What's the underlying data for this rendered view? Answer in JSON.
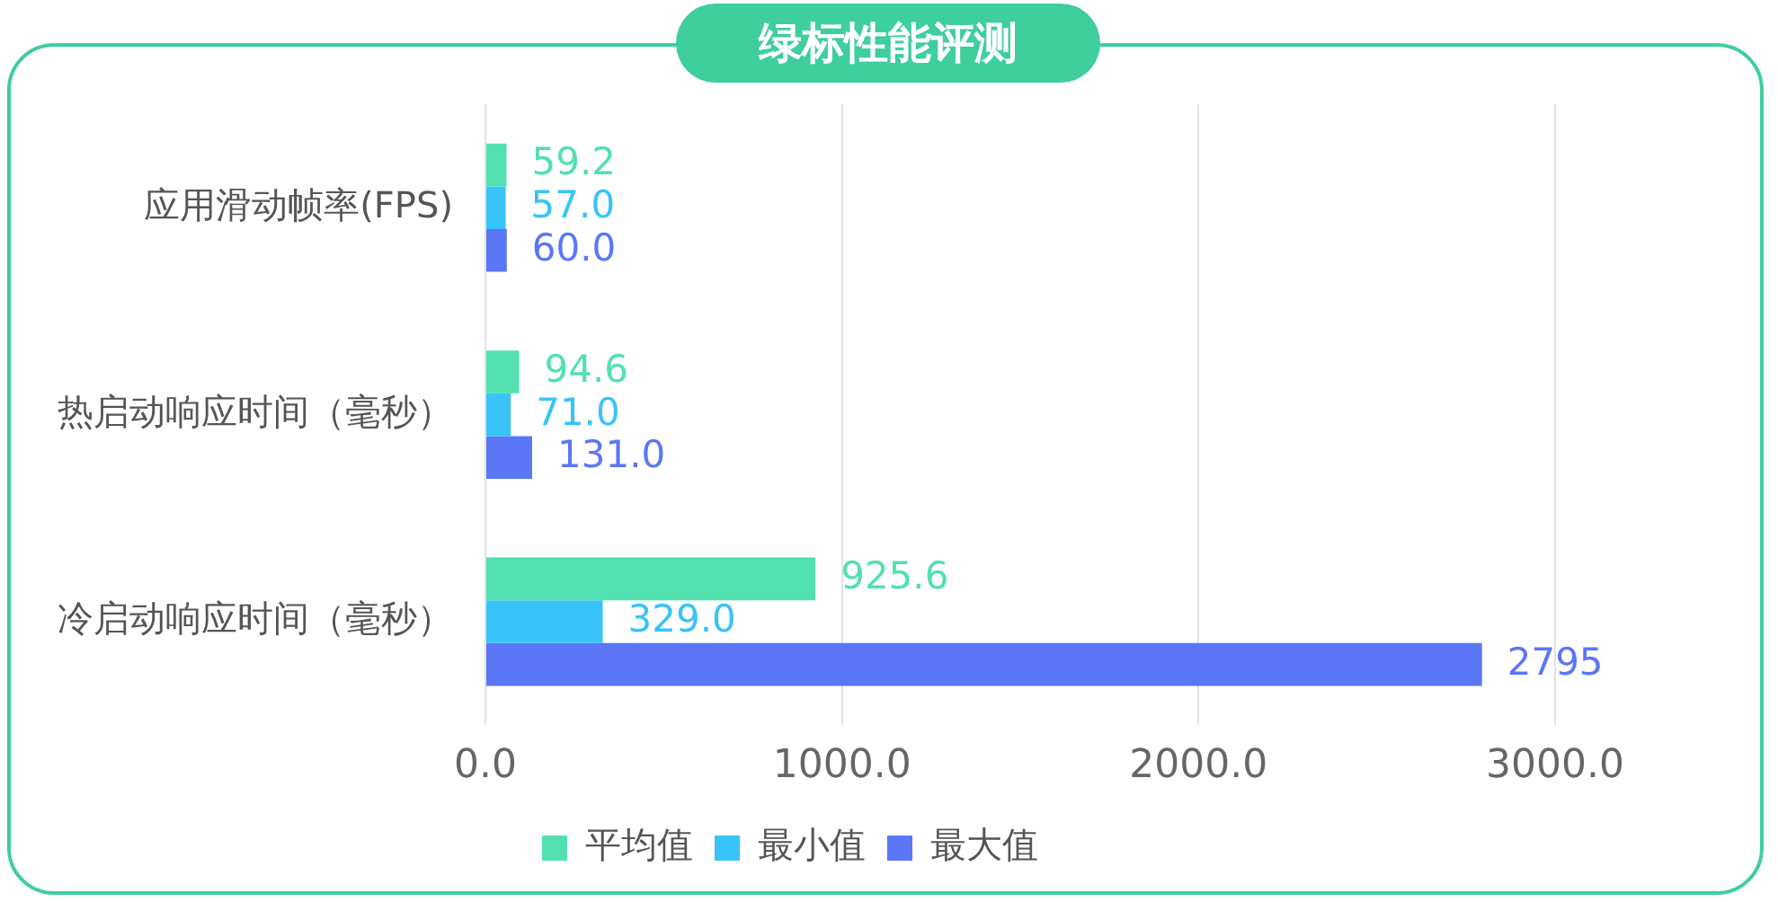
{
  "chart_data": {
    "type": "bar",
    "orientation": "horizontal",
    "title": "绿标性能评测",
    "categories": [
      "应用滑动帧率(FPS)",
      "热启动响应时间（毫秒）",
      "冷启动响应时间（毫秒）"
    ],
    "series": [
      {
        "name": "平均值",
        "color": "#52e0b1",
        "values": [
          59.2,
          94.6,
          925.6
        ],
        "value_labels": [
          "59.2",
          "94.6",
          "925.6"
        ]
      },
      {
        "name": "最小值",
        "color": "#38c3fa",
        "values": [
          57.0,
          71.0,
          329.0
        ],
        "value_labels": [
          "57.0",
          "71.0",
          "329.0"
        ]
      },
      {
        "name": "最大值",
        "color": "#5b76f7",
        "values": [
          60.0,
          131.0,
          2795
        ],
        "value_labels": [
          "60.0",
          "131.0",
          "2795"
        ]
      }
    ],
    "xlim": [
      0,
      3000
    ],
    "xticks": [
      {
        "value": 0,
        "label": "0.0"
      },
      {
        "value": 1000,
        "label": "1000.0"
      },
      {
        "value": 2000,
        "label": "2000.0"
      },
      {
        "value": 3000,
        "label": "3000.0"
      }
    ],
    "grid": "x",
    "legend": "bottom"
  }
}
